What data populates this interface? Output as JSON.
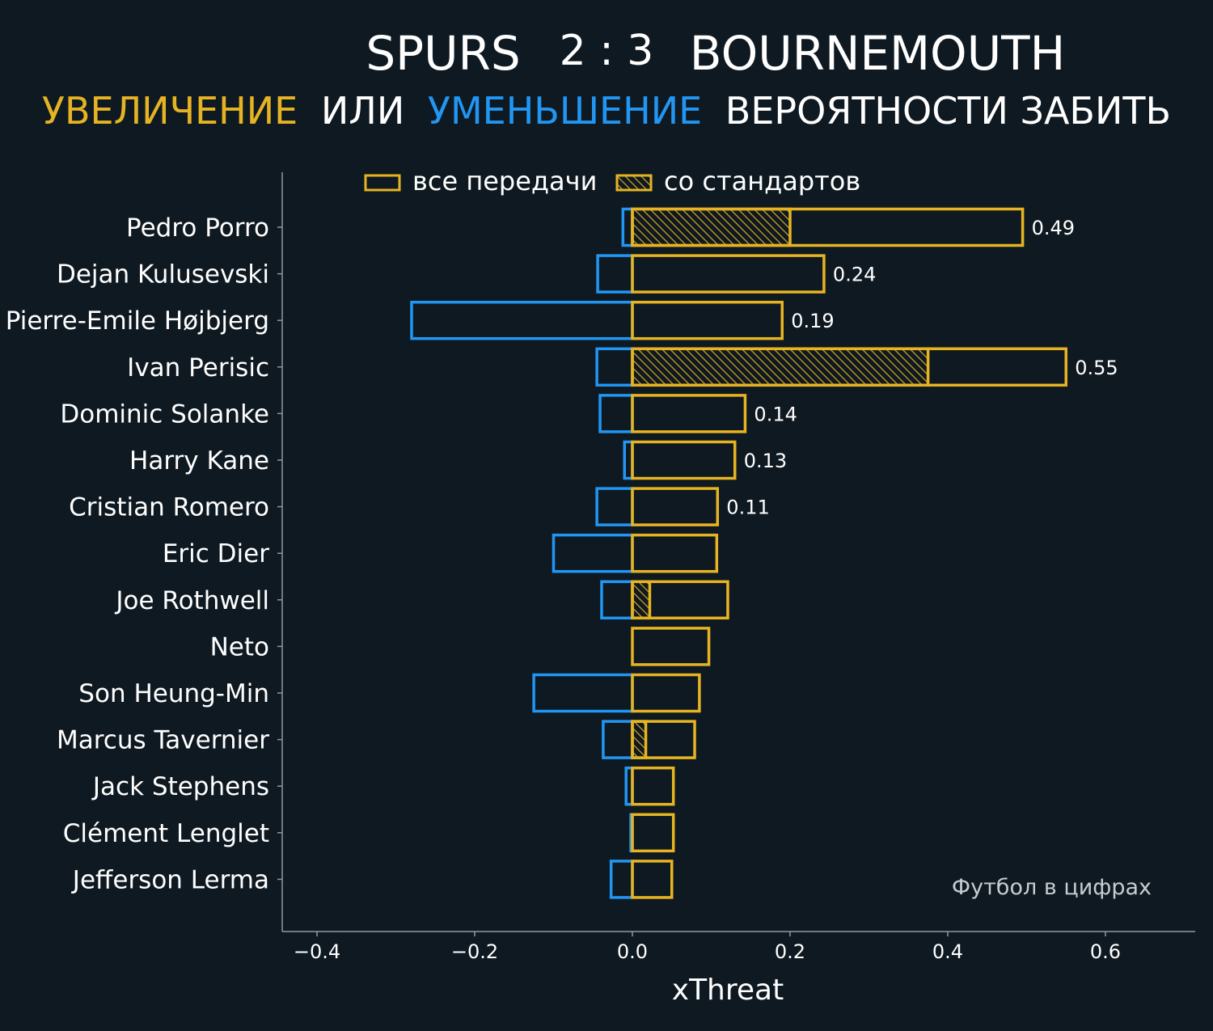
{
  "header": {
    "home_team": "SPURS",
    "score": "2 : 3",
    "away_team": "BOURNEMOUTH",
    "subtitle_increase": "УВЕЛИЧЕНИЕ",
    "subtitle_or": "ИЛИ",
    "subtitle_decrease": "УМЕНЬШЕНИЕ",
    "subtitle_rest": "ВЕРОЯТНОСТИ ЗАБИТЬ"
  },
  "watermark": "Футбол в цифрах",
  "colors": {
    "background": "#0f1921",
    "increase": "#e6b422",
    "decrease": "#2196f3",
    "text": "#ffffff",
    "axis": "#8a9aa5"
  },
  "chart_data": {
    "type": "bar",
    "orientation": "horizontal",
    "xlabel": "xThreat",
    "xlim": [
      -0.445,
      0.715
    ],
    "xticks": [
      -0.4,
      -0.2,
      0.0,
      0.2,
      0.4,
      0.6
    ],
    "xtick_labels": [
      "−0.4",
      "−0.2",
      "0.0",
      "0.2",
      "0.4",
      "0.6"
    ],
    "legend": {
      "placement": "top",
      "entries": [
        "все передачи",
        "со стандартов"
      ]
    },
    "categories": [
      "Pedro Porro",
      "Dejan Kulusevski",
      "Pierre-Emile Højbjerg",
      "Ivan Perisic",
      "Dominic Solanke",
      "Harry Kane",
      "Cristian Romero",
      "Eric Dier",
      "Joe Rothwell",
      "Neto",
      "Son Heung-Min",
      "Marcus Tavernier",
      "Jack Stephens",
      "Clément Lenglet",
      "Jefferson Lerma"
    ],
    "series": [
      {
        "name": "все передачи",
        "positive": [
          0.495,
          0.243,
          0.19,
          0.55,
          0.143,
          0.13,
          0.108,
          0.107,
          0.121,
          0.097,
          0.085,
          0.079,
          0.052,
          0.052,
          0.05
        ],
        "negative": [
          -0.012,
          -0.044,
          -0.28,
          -0.045,
          -0.041,
          -0.01,
          -0.045,
          -0.1,
          -0.039,
          0.0,
          -0.125,
          -0.037,
          -0.008,
          -0.002,
          -0.027
        ]
      },
      {
        "name": "со стандартов",
        "values": [
          0.2,
          0,
          0,
          0.375,
          0,
          0,
          0,
          0,
          0.022,
          0,
          0,
          0.017,
          0,
          0,
          0
        ]
      }
    ],
    "data_labels": [
      "0.49",
      "0.24",
      "0.19",
      "0.55",
      "0.14",
      "0.13",
      "0.11",
      "",
      "",
      "",
      "",
      "",
      "",
      "",
      ""
    ]
  }
}
